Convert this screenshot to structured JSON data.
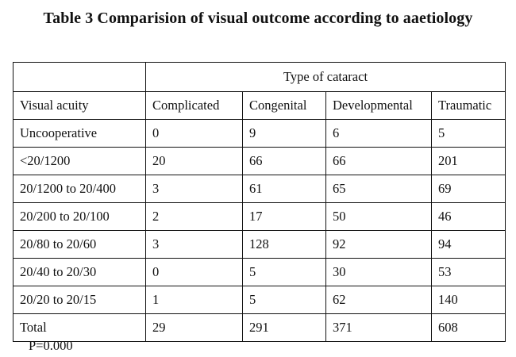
{
  "title": "Table 3 Comparision of visual outcome according to aaetiology",
  "table": {
    "group_header": "Type of cataract",
    "columns": [
      "Visual acuity",
      "Complicated",
      "Congenital",
      "Developmental",
      "Traumatic"
    ],
    "rows": [
      [
        "Uncooperative",
        "0",
        "9",
        "6",
        "5"
      ],
      [
        "<20/1200",
        "20",
        "66",
        "66",
        "201"
      ],
      [
        "20/1200  to 20/400",
        "3",
        "61",
        "65",
        "69"
      ],
      [
        "20/200 to 20/100",
        "2",
        "17",
        "50",
        "46"
      ],
      [
        "20/80  to 20/60",
        "3",
        "128",
        "92",
        "94"
      ],
      [
        "20/40 to 20/30",
        "0",
        "5",
        "30",
        "53"
      ],
      [
        "20/20  to 20/15",
        "1",
        "5",
        "62",
        "140"
      ],
      [
        "Total",
        "29",
        "291",
        "371",
        "608"
      ]
    ]
  },
  "footnote": "P=0.000"
}
